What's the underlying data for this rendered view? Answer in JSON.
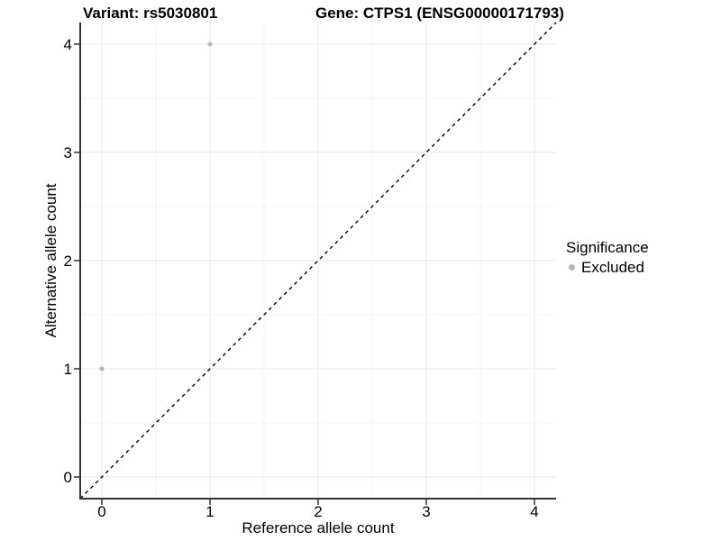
{
  "chart_data": {
    "type": "scatter",
    "title_left": "Variant: rs5030801",
    "title_right": "Gene: CTPS1 (ENSG00000171793)",
    "xlabel": "Reference allele count",
    "ylabel": "Alternative allele count",
    "xlim": [
      -0.2,
      4.2
    ],
    "ylim": [
      -0.2,
      4.2
    ],
    "xticks": [
      0,
      1,
      2,
      3,
      4
    ],
    "yticks": [
      0,
      1,
      2,
      3,
      4
    ],
    "grid": {
      "major": true,
      "minor": true,
      "minor_step": 0.5
    },
    "points": [
      {
        "x": 0,
        "y": 1,
        "series": "Excluded"
      },
      {
        "x": 1,
        "y": 4,
        "series": "Excluded"
      }
    ],
    "reference_line": {
      "type": "identity y=x",
      "linetype": "dashed",
      "from": [
        -0.2,
        -0.2
      ],
      "to": [
        4.2,
        4.2
      ]
    },
    "legend": {
      "title": "Significance",
      "position": "right",
      "items": [
        {
          "label": "Excluded",
          "color": "#b5b5b5",
          "marker": "circle"
        }
      ]
    },
    "colors": {
      "point": "#b5b5b5",
      "grid_major": "#e7e7e7",
      "grid_minor": "#f4f4f4",
      "axis": "#333333",
      "dashed_line": "#000000",
      "text": "#000000"
    }
  }
}
